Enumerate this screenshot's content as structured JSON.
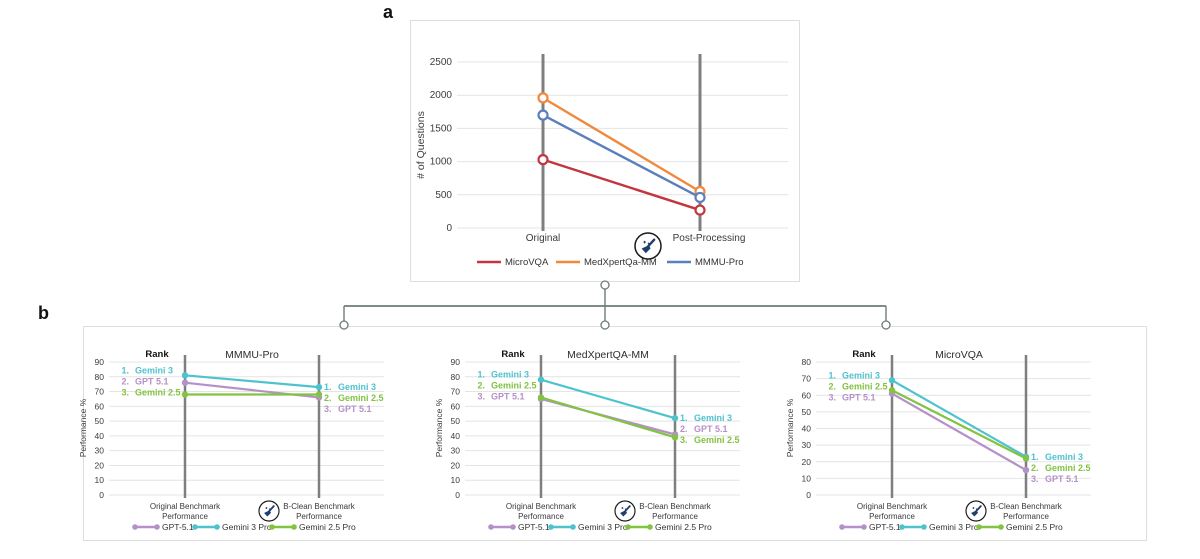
{
  "panel_a": {
    "label": "a"
  },
  "panel_b": {
    "label": "b"
  },
  "icons": {
    "cleaning": "broom-sparkles-icon"
  },
  "colors": {
    "micro_vqa_red": "#C2363F",
    "medxpertqa_orange": "#F0893C",
    "mmmu_blue": "#5B7EBD",
    "gpt_purple": "#B591C9",
    "gemini3_teal": "#4EC3CE",
    "gemini25_green": "#82C341",
    "axis_gray": "#7F7F7F",
    "grid_gray": "#E4E4E4"
  },
  "chart_data": [
    {
      "panel": "a",
      "type": "line",
      "title": "",
      "ylabel": "# of Questions",
      "ylim": [
        0,
        2500
      ],
      "yticks": [
        0,
        500,
        1000,
        1500,
        2000,
        2500
      ],
      "categories": [
        [
          "Original"
        ],
        [
          "Post-Processing"
        ]
      ],
      "between_category_icon": "broom-sparkles-icon",
      "grid": true,
      "marker": "open-circle",
      "legend_position": "bottom",
      "series": [
        {
          "name": "MicroVQA",
          "color": "#C2363F",
          "values": [
            1030,
            270
          ]
        },
        {
          "name": "MedXpertQa-MM",
          "color": "#F0893C",
          "values": [
            1960,
            550
          ]
        },
        {
          "name": "MMMU-Pro",
          "color": "#5B7EBD",
          "values": [
            1700,
            460
          ]
        }
      ]
    },
    {
      "panel": "b",
      "type": "line",
      "title": "MMMU-Pro",
      "rank_header": "Rank",
      "ylabel": "Performance %",
      "ylim": [
        0,
        90
      ],
      "yticks": [
        0,
        10,
        20,
        30,
        40,
        50,
        60,
        70,
        80,
        90
      ],
      "categories": [
        [
          "Original Benchmark",
          "Performance"
        ],
        [
          "B-Clean Benchmark",
          "Performance"
        ]
      ],
      "before_category2_icon": "broom-sparkles-icon",
      "grid": true,
      "marker": "filled-circle",
      "legend_position": "bottom",
      "series": [
        {
          "name": "GPT-5.1",
          "color": "#B591C9",
          "values": [
            76,
            66
          ]
        },
        {
          "name": "Gemini 3 Pro",
          "color": "#4EC3CE",
          "values": [
            81,
            73
          ]
        },
        {
          "name": "Gemini 2.5 Pro",
          "color": "#82C341",
          "values": [
            68,
            68
          ]
        }
      ],
      "left_ranks": [
        {
          "rank": "1.",
          "label": "Gemini 3",
          "color": "#4EC3CE"
        },
        {
          "rank": "2.",
          "label": "GPT 5.1",
          "color": "#B591C9"
        },
        {
          "rank": "3.",
          "label": "Gemini 2.5",
          "color": "#82C341"
        }
      ],
      "right_ranks": [
        {
          "rank": "1.",
          "label": "Gemini 3",
          "color": "#4EC3CE"
        },
        {
          "rank": "2.",
          "label": "Gemini 2.5",
          "color": "#82C341"
        },
        {
          "rank": "3.",
          "label": "GPT 5.1",
          "color": "#B591C9"
        }
      ]
    },
    {
      "panel": "b",
      "type": "line",
      "title": "MedXpertQA-MM",
      "rank_header": "Rank",
      "ylabel": "Performance %",
      "ylim": [
        0,
        90
      ],
      "yticks": [
        0,
        10,
        20,
        30,
        40,
        50,
        60,
        70,
        80,
        90
      ],
      "categories": [
        [
          "Original Benchmark",
          "Performance"
        ],
        [
          "B-Clean Benchmark",
          "Performance"
        ]
      ],
      "before_category2_icon": "broom-sparkles-icon",
      "grid": true,
      "marker": "filled-circle",
      "legend_position": "bottom",
      "series": [
        {
          "name": "GPT-5.1",
          "color": "#B591C9",
          "values": [
            65,
            41
          ]
        },
        {
          "name": "Gemini 3 Pro",
          "color": "#4EC3CE",
          "values": [
            78,
            52
          ]
        },
        {
          "name": "Gemini 2.5 Pro",
          "color": "#82C341",
          "values": [
            66,
            39
          ]
        }
      ],
      "left_ranks": [
        {
          "rank": "1.",
          "label": "Gemini 3",
          "color": "#4EC3CE"
        },
        {
          "rank": "2.",
          "label": "Gemini 2.5",
          "color": "#82C341"
        },
        {
          "rank": "3.",
          "label": "GPT 5.1",
          "color": "#B591C9"
        }
      ],
      "right_ranks": [
        {
          "rank": "1.",
          "label": "Gemini 3",
          "color": "#4EC3CE"
        },
        {
          "rank": "2.",
          "label": "GPT 5.1",
          "color": "#B591C9"
        },
        {
          "rank": "3.",
          "label": "Gemini 2.5",
          "color": "#82C341"
        }
      ]
    },
    {
      "panel": "b",
      "type": "line",
      "title": "MicroVQA",
      "rank_header": "Rank",
      "ylabel": "Performance %",
      "ylim": [
        0,
        80
      ],
      "yticks": [
        0,
        10,
        20,
        30,
        40,
        50,
        60,
        70,
        80
      ],
      "categories": [
        [
          "Original Benchmark",
          "Performance"
        ],
        [
          "B-Clean Benchmark",
          "Performance"
        ]
      ],
      "before_category2_icon": "broom-sparkles-icon",
      "grid": true,
      "marker": "filled-circle",
      "legend_position": "bottom",
      "series": [
        {
          "name": "GPT-5.1",
          "color": "#B591C9",
          "values": [
            61,
            15
          ]
        },
        {
          "name": "Gemini 3 Pro",
          "color": "#4EC3CE",
          "values": [
            69,
            23
          ]
        },
        {
          "name": "Gemini 2.5 Pro",
          "color": "#82C341",
          "values": [
            63,
            22
          ]
        }
      ],
      "left_ranks": [
        {
          "rank": "1.",
          "label": "Gemini 3",
          "color": "#4EC3CE"
        },
        {
          "rank": "2.",
          "label": "Gemini 2.5",
          "color": "#82C341"
        },
        {
          "rank": "3.",
          "label": "GPT 5.1",
          "color": "#B591C9"
        }
      ],
      "right_ranks": [
        {
          "rank": "1.",
          "label": "Gemini 3",
          "color": "#4EC3CE"
        },
        {
          "rank": "2.",
          "label": "Gemini 2.5",
          "color": "#82C341"
        },
        {
          "rank": "3.",
          "label": "GPT 5.1",
          "color": "#B591C9"
        }
      ]
    }
  ]
}
